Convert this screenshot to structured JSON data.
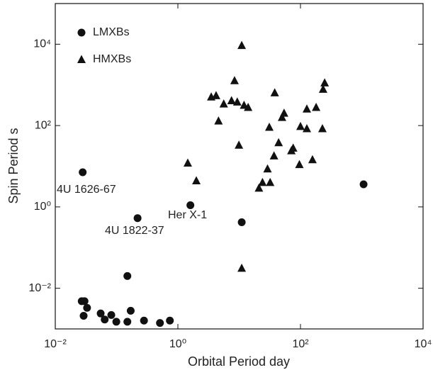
{
  "chart_data": {
    "type": "scatter",
    "x_label": "Orbital Period  day",
    "y_label": "Spin Period  s",
    "log_x": true,
    "log_y": true,
    "xlim": [
      0.01,
      10000
    ],
    "ylim": [
      0.001,
      100000
    ],
    "xticks": [
      {
        "value": 0.01,
        "label": "10⁻²"
      },
      {
        "value": 1,
        "label": "10⁰"
      },
      {
        "value": 100,
        "label": "10²"
      },
      {
        "value": 10000,
        "label": "10⁴"
      }
    ],
    "yticks": [
      {
        "value": 0.01,
        "label": "10⁻²"
      },
      {
        "value": 1,
        "label": "10⁰"
      },
      {
        "value": 100,
        "label": "10²"
      },
      {
        "value": 10000,
        "label": "10⁴"
      }
    ],
    "legend": "top-left",
    "series": [
      {
        "name": "LMXBs",
        "color": "#111111",
        "marker": "circle",
        "x": [
          0.028,
          1.6,
          0.22,
          11,
          1070,
          0.15,
          0.027,
          0.03,
          0.033,
          0.029,
          0.055,
          0.064,
          0.082,
          0.099,
          0.15,
          0.17,
          0.28,
          0.51,
          0.74
        ],
        "values": [
          7.1,
          1.1,
          0.53,
          0.42,
          3.6,
          0.02,
          0.0048,
          0.0048,
          0.0033,
          0.0021,
          0.0024,
          0.0017,
          0.0022,
          0.0015,
          0.0015,
          0.0028,
          0.0016,
          0.0014,
          0.0016
        ]
      },
      {
        "name": "HMXBs",
        "color": "#111111",
        "marker": "triangle",
        "x": [
          11,
          8.4,
          3.5,
          4.2,
          5.6,
          7.5,
          9.3,
          12,
          14,
          4.6,
          9.9,
          1.45,
          2.0,
          11,
          38,
          31,
          44,
          37,
          29,
          24,
          21,
          32,
          50,
          54,
          71,
          76,
          100,
          127,
          127,
          180,
          96,
          157,
          228,
          234,
          248
        ],
        "values": [
          9300,
          1270,
          505,
          545,
          340,
          410,
          380,
          315,
          280,
          130,
          33,
          12,
          4.4,
          0.031,
          640,
          91,
          38,
          18,
          8.6,
          4.0,
          2.9,
          4.0,
          159,
          202,
          24,
          28,
          95,
          84,
          256,
          280,
          11,
          14.5,
          84,
          783,
          1120
        ]
      }
    ],
    "annotations": [
      "4U 1626-67",
      "Her X-1",
      "4U 1822-37"
    ]
  }
}
